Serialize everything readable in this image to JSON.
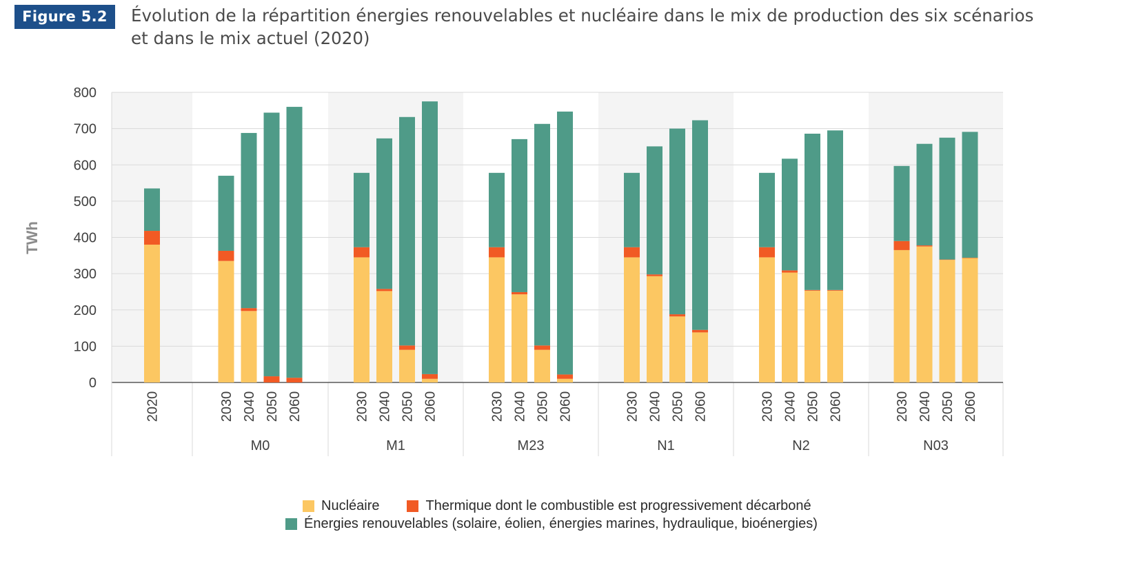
{
  "figure": {
    "badge": "Figure 5.2",
    "title_line1": "Évolution de la répartition énergies renouvelables et nucléaire dans le mix de production des six scénarios",
    "title_line2": "et dans le mix actuel (2020)"
  },
  "colors": {
    "nuclear": "#fcc762",
    "thermal": "#f15a24",
    "renewable": "#4f9b88",
    "band_shade": "#f4f4f4",
    "grid": "#d9d9d9"
  },
  "legend": {
    "nuclear": "Nucléaire",
    "thermal": "Thermique dont le combustible est progressivement décarboné",
    "renewable": "Énergies renouvelables (solaire, éolien, énergies marines, hydraulique, bioénergies)"
  },
  "chart_data": {
    "type": "bar",
    "stacked": true,
    "ylabel": "TWh",
    "xlabel": "",
    "ylim": [
      0,
      800
    ],
    "yticks": [
      0,
      100,
      200,
      300,
      400,
      500,
      600,
      700,
      800
    ],
    "grid": true,
    "legend_position": "bottom",
    "groups": [
      {
        "name": "",
        "shaded": true,
        "years": [
          "2020"
        ]
      },
      {
        "name": "M0",
        "shaded": false,
        "years": [
          "2030",
          "2040",
          "2050",
          "2060"
        ]
      },
      {
        "name": "M1",
        "shaded": true,
        "years": [
          "2030",
          "2040",
          "2050",
          "2060"
        ]
      },
      {
        "name": "M23",
        "shaded": false,
        "years": [
          "2030",
          "2040",
          "2050",
          "2060"
        ]
      },
      {
        "name": "N1",
        "shaded": true,
        "years": [
          "2030",
          "2040",
          "2050",
          "2060"
        ]
      },
      {
        "name": "N2",
        "shaded": false,
        "years": [
          "2030",
          "2040",
          "2050",
          "2060"
        ]
      },
      {
        "name": "N03",
        "shaded": true,
        "years": [
          "2030",
          "2040",
          "2050",
          "2060"
        ]
      }
    ],
    "series": [
      {
        "name": "Nucléaire",
        "color_key": "nuclear",
        "values": [
          380,
          335,
          197,
          0,
          0,
          345,
          252,
          90,
          10,
          345,
          243,
          90,
          10,
          345,
          293,
          182,
          138,
          345,
          303,
          253,
          253,
          365,
          375,
          338,
          343
        ]
      },
      {
        "name": "Thermique dont le combustible est progressivement décarboné",
        "color_key": "thermal",
        "values": [
          38,
          28,
          8,
          17,
          13,
          28,
          6,
          12,
          13,
          28,
          6,
          12,
          12,
          28,
          5,
          6,
          7,
          28,
          6,
          2,
          2,
          25,
          3,
          1,
          1
        ]
      },
      {
        "name": "Énergies renouvelables (solaire, éolien, énergies marines, hydraulique, bioénergies)",
        "color_key": "renewable",
        "values": [
          117,
          207,
          483,
          727,
          747,
          205,
          415,
          630,
          752,
          205,
          422,
          611,
          725,
          205,
          353,
          512,
          578,
          205,
          308,
          431,
          440,
          207,
          280,
          336,
          347
        ]
      }
    ]
  }
}
